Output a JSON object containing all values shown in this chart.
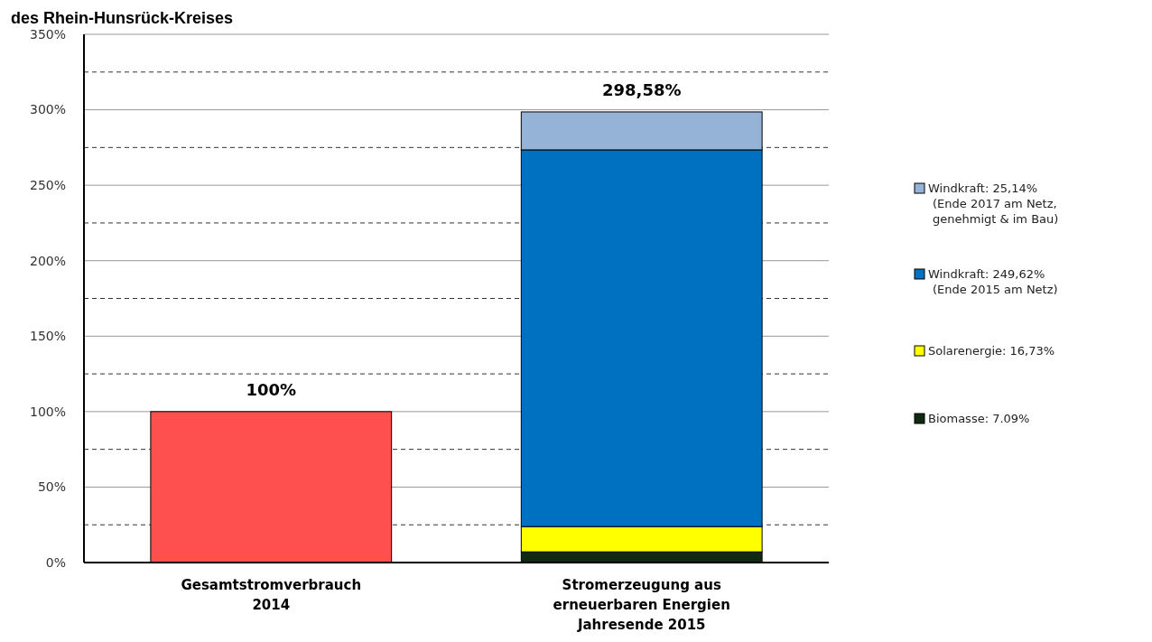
{
  "chart_data": {
    "type": "bar",
    "title": "des Rhein-Hunsrück-Kreises",
    "stacked": true,
    "categories": [
      "Gesamtstromverbrauch\n2014",
      "Stromerzeugung aus\nerneuerbaren Energien\nJahresende 2015"
    ],
    "series": [
      {
        "color": "#ff5050",
        "values": [
          100,
          null
        ]
      },
      {
        "name": "Biomasse: 7.09%",
        "color": "#0f2a10",
        "values": [
          null,
          7.09
        ]
      },
      {
        "name": "Solarenergie: 16,73%",
        "color": "#ffff00",
        "values": [
          null,
          16.73
        ]
      },
      {
        "name": "Windkraft: 249,62%\n(Ende 2015 am Netz)",
        "color": "#0070c0",
        "values": [
          null,
          249.62
        ]
      },
      {
        "name": "Windkraft: 25,14%\n(Ende 2017 am Netz,\ngenehmigt & im Bau)",
        "color": "#95b3d7",
        "values": [
          null,
          25.14
        ]
      }
    ],
    "totals": [
      "100%",
      "298,58%"
    ],
    "ylim": [
      0,
      350
    ],
    "yticks": [
      {
        "value": 0,
        "label": "0%"
      },
      {
        "value": 25,
        "label": null
      },
      {
        "value": 50,
        "label": "50%"
      },
      {
        "value": 75,
        "label": null
      },
      {
        "value": 100,
        "label": "100%"
      },
      {
        "value": 125,
        "label": null
      },
      {
        "value": 150,
        "label": "150%"
      },
      {
        "value": 175,
        "label": null
      },
      {
        "value": 200,
        "label": "200%"
      },
      {
        "value": 225,
        "label": null
      },
      {
        "value": 250,
        "label": "250%"
      },
      {
        "value": 275,
        "label": null
      },
      {
        "value": 300,
        "label": "300%"
      },
      {
        "value": 325,
        "label": null
      },
      {
        "value": 350,
        "label": "350%"
      }
    ],
    "grid": true,
    "legend": "right"
  }
}
